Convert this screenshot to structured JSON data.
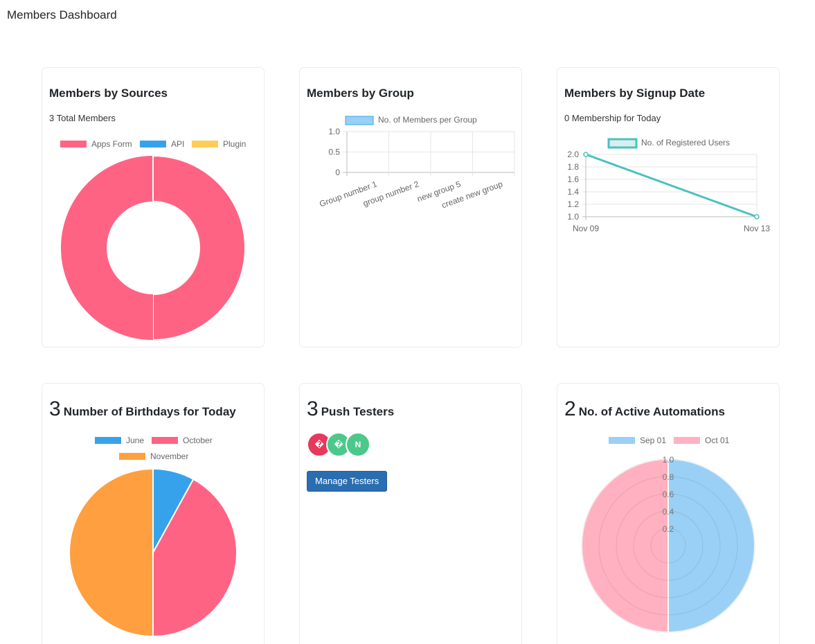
{
  "page": {
    "title": "Members Dashboard"
  },
  "sources": {
    "title": "Members by Sources",
    "subtitle": "3 Total Members",
    "chart_data": {
      "type": "pie",
      "variant": "doughnut",
      "labels": [
        "Apps Form",
        "API",
        "Plugin"
      ],
      "values": [
        3,
        0,
        0
      ],
      "colors": [
        "#ff6384",
        "#36a2eb",
        "#ffcd56"
      ],
      "legend": "top"
    }
  },
  "groups": {
    "title": "Members by Group",
    "chart_data": {
      "type": "bar",
      "categories": [
        "Group number 1",
        "group number 2",
        "new group 5",
        "create new group"
      ],
      "series": [
        {
          "name": "No. of Members per Group",
          "values": [
            0,
            0,
            0,
            0
          ]
        }
      ],
      "ylim": [
        0,
        1.0
      ],
      "yticks": [
        "1.0",
        "0.5",
        "0"
      ],
      "grid": true,
      "legend": "top",
      "color": "#9ad0f5"
    }
  },
  "signup": {
    "title": "Members by Signup Date",
    "subtitle": "0 Membership for Today",
    "chart_data": {
      "type": "line",
      "x": [
        "Nov 09",
        "Nov 13"
      ],
      "series": [
        {
          "name": "No. of Registered Users",
          "values": [
            2.0,
            1.0
          ]
        }
      ],
      "ylim": [
        1.0,
        2.0
      ],
      "yticks": [
        "2.0",
        "1.8",
        "1.6",
        "1.4",
        "1.2",
        "1.0"
      ],
      "grid": true,
      "legend": "top",
      "color": "#4bc0c0"
    }
  },
  "birthdays": {
    "count": "3",
    "title": "Number of Birthdays for Today",
    "chart_data": {
      "type": "pie",
      "labels": [
        "June",
        "October",
        "November"
      ],
      "values": [
        8,
        42,
        50
      ],
      "colors": [
        "#36a2eb",
        "#ff6384",
        "#ff9f40"
      ],
      "legend": "top"
    }
  },
  "testers": {
    "count": "3",
    "title": "Push Testers",
    "avatars": [
      {
        "initial": "�",
        "color": "#e8385c"
      },
      {
        "initial": "�",
        "color": "#4cc98a"
      },
      {
        "initial": "N",
        "color": "#4cc98a"
      }
    ],
    "button_label": "Manage Testers"
  },
  "automations": {
    "count": "2",
    "title": "No. of Active Automations",
    "chart_data": {
      "type": "pie",
      "variant": "polarArea",
      "labels": [
        "Sep 01",
        "Oct 01"
      ],
      "values": [
        1,
        1
      ],
      "colors": [
        "#9ad0f5",
        "#ffb1c1"
      ],
      "rticks": [
        "1.0",
        "0.8",
        "0.6",
        "0.4",
        "0.2"
      ],
      "rlim": [
        0,
        1.0
      ],
      "legend": "top"
    }
  }
}
